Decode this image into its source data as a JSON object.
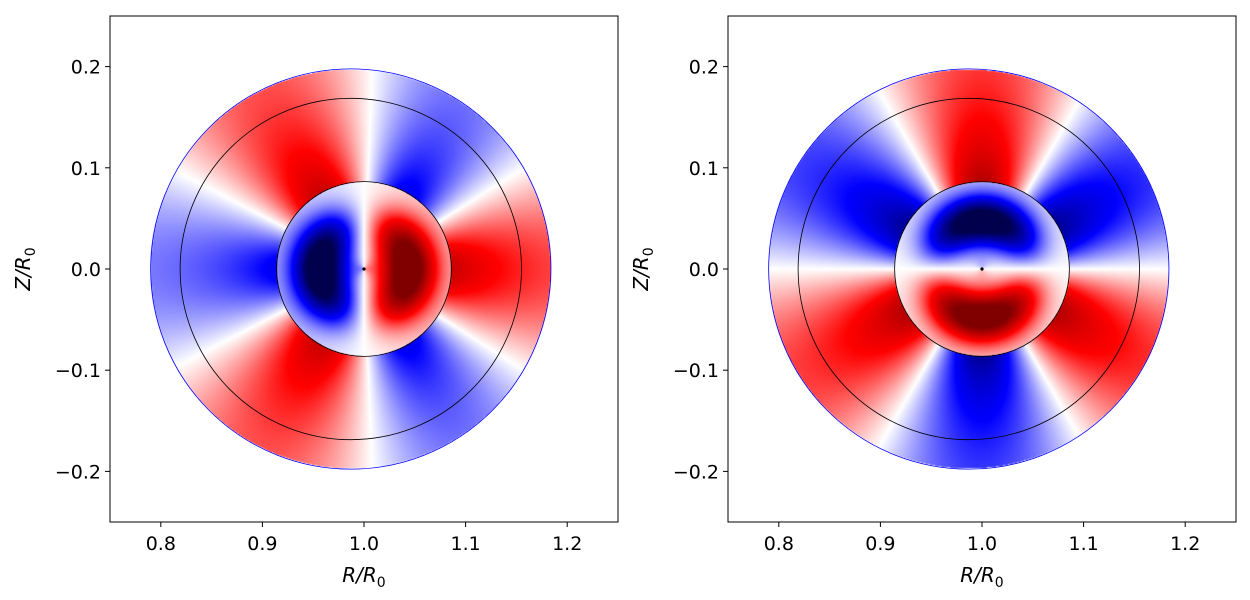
{
  "chart_data": [
    {
      "type": "heatmap",
      "title": "",
      "xlabel_main": "R/R",
      "xlabel_sub": "0",
      "ylabel_main": "Z/R",
      "ylabel_sub": "0",
      "xlim": [
        0.75,
        1.25
      ],
      "ylim": [
        -0.25,
        0.25
      ],
      "xticks": [
        0.8,
        0.9,
        1.0,
        1.1,
        1.2
      ],
      "xtick_labels": [
        "0.8",
        "0.9",
        "1.0",
        "1.1",
        "1.2"
      ],
      "yticks": [
        -0.2,
        -0.1,
        0.0,
        0.1,
        0.2
      ],
      "ytick_labels": [
        "−0.2",
        "−0.1",
        "0.0",
        "0.1",
        "0.2"
      ],
      "magnetic_axis": [
        1.0,
        0.0
      ],
      "domain_boundary": {
        "center": [
          0.987,
          0.0
        ],
        "radius": 0.197,
        "color": "#0000ff"
      },
      "flux_surfaces": [
        {
          "center": [
            0.987,
            0.0
          ],
          "radius": 0.168
        },
        {
          "center": [
            1.0,
            0.0
          ],
          "radius": 0.086
        }
      ],
      "colormap": "seismic (blue negative, white zero, red positive)",
      "mode_parity": "even"
    },
    {
      "type": "heatmap",
      "title": "",
      "xlabel_main": "R/R",
      "xlabel_sub": "0",
      "ylabel_main": "Z/R",
      "ylabel_sub": "0",
      "xlim": [
        0.75,
        1.25
      ],
      "ylim": [
        -0.25,
        0.25
      ],
      "xticks": [
        0.8,
        0.9,
        1.0,
        1.1,
        1.2
      ],
      "xtick_labels": [
        "0.8",
        "0.9",
        "1.0",
        "1.1",
        "1.2"
      ],
      "yticks": [
        -0.2,
        -0.1,
        0.0,
        0.1,
        0.2
      ],
      "ytick_labels": [
        "−0.2",
        "−0.1",
        "0.0",
        "0.1",
        "0.2"
      ],
      "magnetic_axis": [
        1.0,
        0.0
      ],
      "domain_boundary": {
        "center": [
          0.987,
          0.0
        ],
        "radius": 0.197,
        "color": "#0000ff"
      },
      "flux_surfaces": [
        {
          "center": [
            0.987,
            0.0
          ],
          "radius": 0.168
        },
        {
          "center": [
            1.0,
            0.0
          ],
          "radius": 0.086
        }
      ],
      "colormap": "seismic (blue negative, white zero, red positive)",
      "mode_parity": "odd"
    }
  ]
}
